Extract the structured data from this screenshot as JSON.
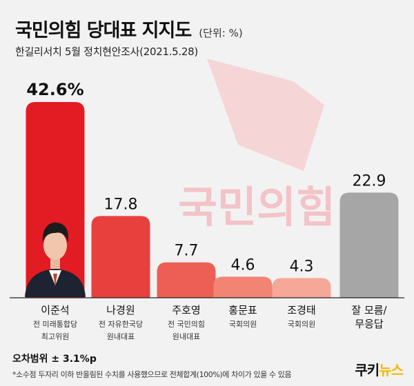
{
  "header": {
    "title": "국민의힘 당대표 지지도",
    "unit": "(단위: %)",
    "subtitle": "한길리서치 5월 정치현안조사(2021.5.28)"
  },
  "watermark": {
    "text": "국민의힘",
    "color": "#f3c3c7"
  },
  "chart_data": {
    "type": "bar",
    "categories": [
      "이준석",
      "나경원",
      "주호영",
      "홍문표",
      "조경태",
      "잘 모름/\n무응답"
    ],
    "descriptions": [
      "전 미래통합당\n최고위원",
      "전 자유한국당\n원내대표",
      "전 국민의힘\n원내대표",
      "국회의원",
      "국회의원",
      ""
    ],
    "values": [
      42.6,
      17.8,
      7.7,
      4.6,
      4.3,
      22.9
    ],
    "value_labels": [
      "42.6%",
      "17.8",
      "7.7",
      "4.6",
      "4.3",
      "22.9"
    ],
    "colors": [
      "#e31b23",
      "#e8403d",
      "#ed5f55",
      "#f28474",
      "#f5a898",
      "#a6a6a6"
    ],
    "ylim": [
      0,
      45
    ],
    "title": "국민의힘 당대표 지지도",
    "xlabel": "",
    "ylabel": ""
  },
  "footer": {
    "margin_of_error": "오차범위 ± 3.1%p",
    "footnote": "*소수점 두자리 이하 반올림된 수치를 사용했으므로 전체합계(100%)에 차이가 있을 수 있음",
    "logo_main": "쿠키",
    "logo_accent": "뉴스"
  }
}
